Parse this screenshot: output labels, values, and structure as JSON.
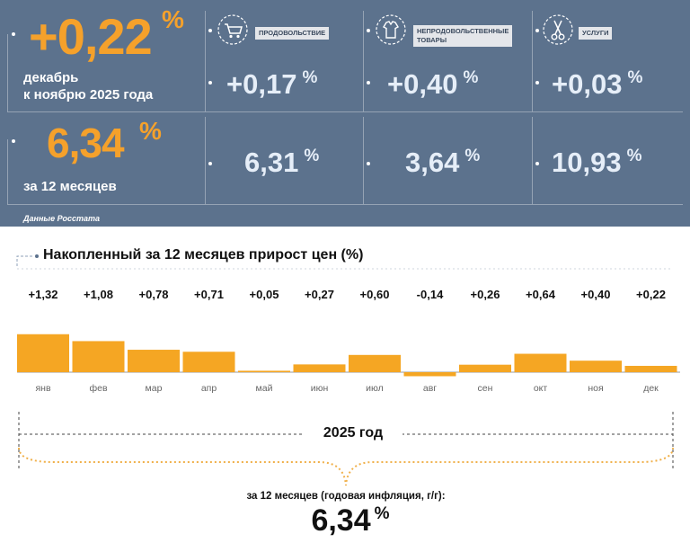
{
  "headline": {
    "monthly_value": "+0,22",
    "monthly_unit": "%",
    "monthly_caption_line1": "декабрь",
    "monthly_caption_line2": "к ноябрю 2025 года",
    "annual_value": "6,34",
    "annual_unit": "%",
    "annual_caption": "за 12 месяцев",
    "source": "Данные Росстата"
  },
  "categories": [
    {
      "label": "ПРОДОВОЛЬСТВИЕ",
      "icon": "shopping-cart-icon",
      "monthly": "+0,17",
      "annual": "6,31",
      "unit": "%"
    },
    {
      "label_line1": "НЕПРОДОВОЛЬСТВЕННЫЕ",
      "label_line2": "ТОВАРЫ",
      "icon": "clothing-icon",
      "monthly": "+0,40",
      "annual": "3,64",
      "unit": "%"
    },
    {
      "label": "УСЛУГИ",
      "icon": "scissors-icon",
      "monthly": "+0,03",
      "annual": "10,93",
      "unit": "%"
    }
  ],
  "chart_data": {
    "type": "bar",
    "title": "Накопленный за 12 месяцев прирост цен (%)",
    "categories": [
      "янв",
      "фев",
      "мар",
      "апр",
      "май",
      "июн",
      "июл",
      "авг",
      "сен",
      "окт",
      "ноя",
      "дек"
    ],
    "values": [
      1.32,
      1.08,
      0.78,
      0.71,
      0.05,
      0.27,
      0.6,
      -0.14,
      0.26,
      0.64,
      0.4,
      0.22
    ],
    "value_labels": [
      "+1,32",
      "+1,08",
      "+0,78",
      "+0,71",
      "+0,05",
      "+0,27",
      "+0,60",
      "-0,14",
      "+0,26",
      "+0,64",
      "+0,40",
      "+0,22"
    ],
    "bar_color": "#f5a623",
    "grid": false,
    "legend": "none"
  },
  "footer": {
    "year_label": "2025 год",
    "annual_caption": "за 12 месяцев (годовая инфляция, г/г):",
    "annual_value": "6,34",
    "annual_unit": "%"
  },
  "colors": {
    "panel_bg": "#5c728d",
    "accent_orange": "#f5a12b",
    "category_value": "#e6eef8"
  }
}
